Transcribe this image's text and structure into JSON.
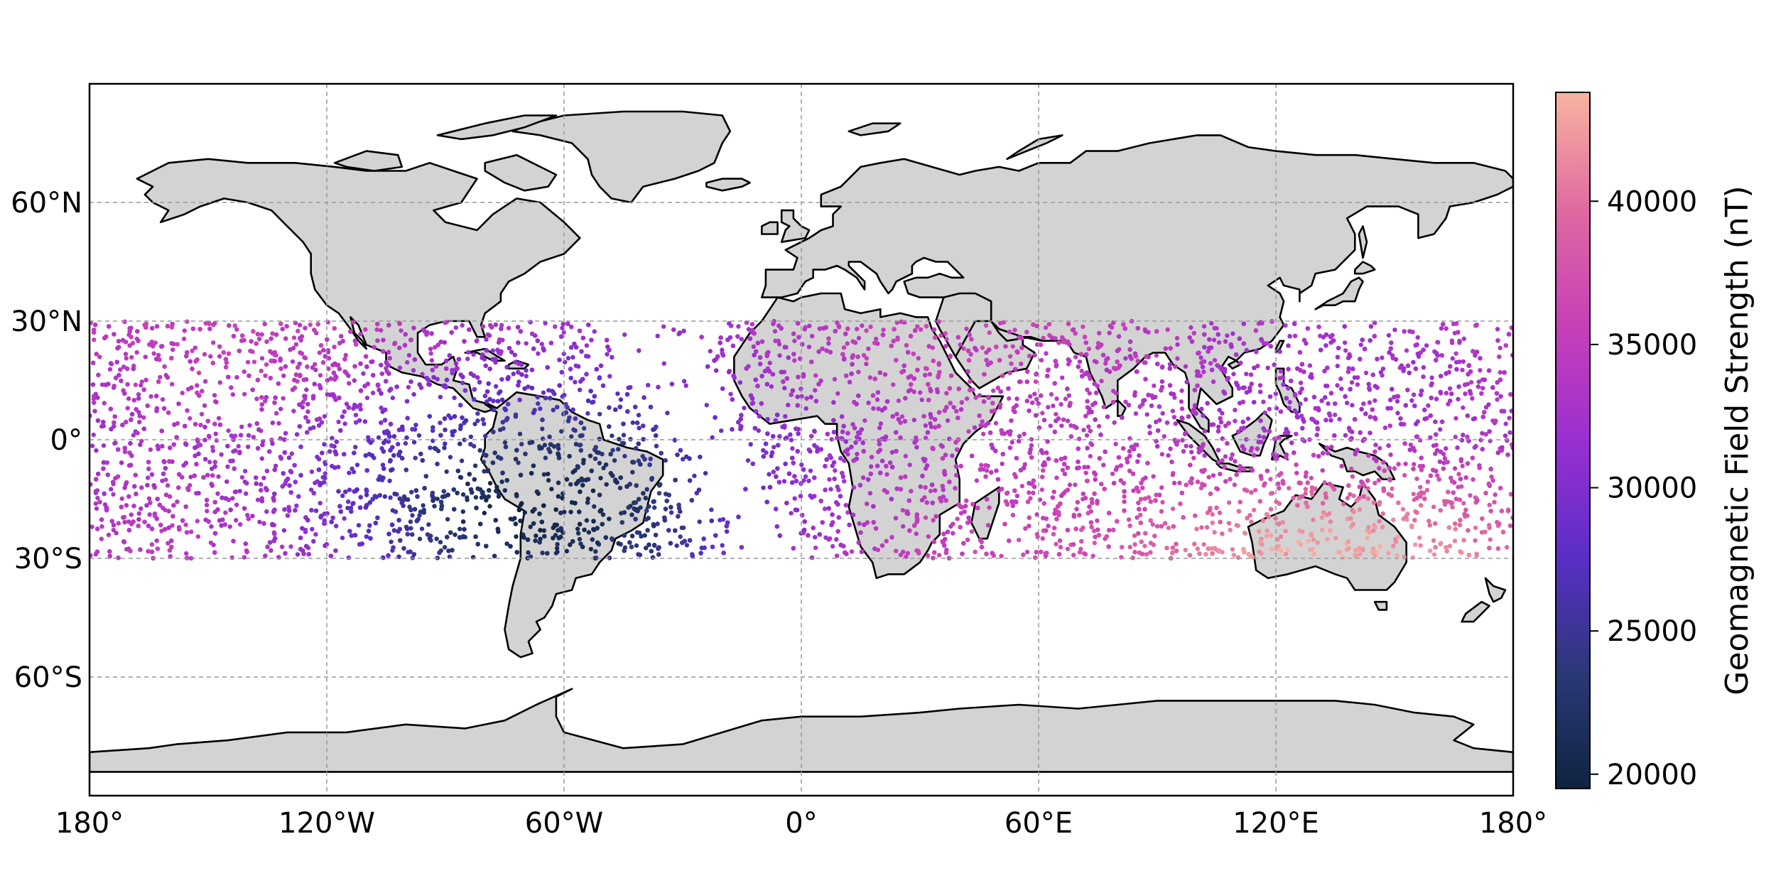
{
  "map": {
    "projection": "PlateCarree",
    "extent": {
      "lon": [
        -180,
        180
      ],
      "lat": [
        -90,
        90
      ]
    },
    "ocean_color": "#ffffff",
    "land_color": "#d3d3d3",
    "coastline_color": "#000000",
    "gridlines": true,
    "x_ticks": [
      {
        "value": -180,
        "label": "180°"
      },
      {
        "value": -120,
        "label": "120°W"
      },
      {
        "value": -60,
        "label": "60°W"
      },
      {
        "value": 0,
        "label": "0°"
      },
      {
        "value": 60,
        "label": "60°E"
      },
      {
        "value": 120,
        "label": "120°E"
      },
      {
        "value": 180,
        "label": "180°"
      }
    ],
    "y_ticks": [
      {
        "value": 60,
        "label": "60°N"
      },
      {
        "value": 30,
        "label": "30°N"
      },
      {
        "value": 0,
        "label": "0°"
      },
      {
        "value": -30,
        "label": "30°S"
      },
      {
        "value": -60,
        "label": "60°S"
      }
    ]
  },
  "scatter": {
    "type": "scatter",
    "lat_range": [
      -30,
      30
    ],
    "lon_range": [
      -180,
      180
    ],
    "colormap": "magma-like (dark navy → purple → magenta → peach)",
    "value_min": 19500,
    "value_max": 43800,
    "marker": "small dots",
    "minimum_region": {
      "lon": -70,
      "lat": -20
    },
    "maximum_region": {
      "lon": 135,
      "lat": -28
    }
  },
  "colorbar": {
    "label": "Geomagnetic Field Strength (nT)",
    "min": 19500,
    "max": 43800,
    "colors": [
      "#0f2440",
      "#2b3878",
      "#5a2ec8",
      "#9a2fd0",
      "#c840b8",
      "#e06aa0",
      "#f8b4a0"
    ],
    "ticks": [
      {
        "value": 20000,
        "label": "20000"
      },
      {
        "value": 25000,
        "label": "25000"
      },
      {
        "value": 30000,
        "label": "30000"
      },
      {
        "value": 35000,
        "label": "35000"
      },
      {
        "value": 40000,
        "label": "40000"
      }
    ]
  }
}
